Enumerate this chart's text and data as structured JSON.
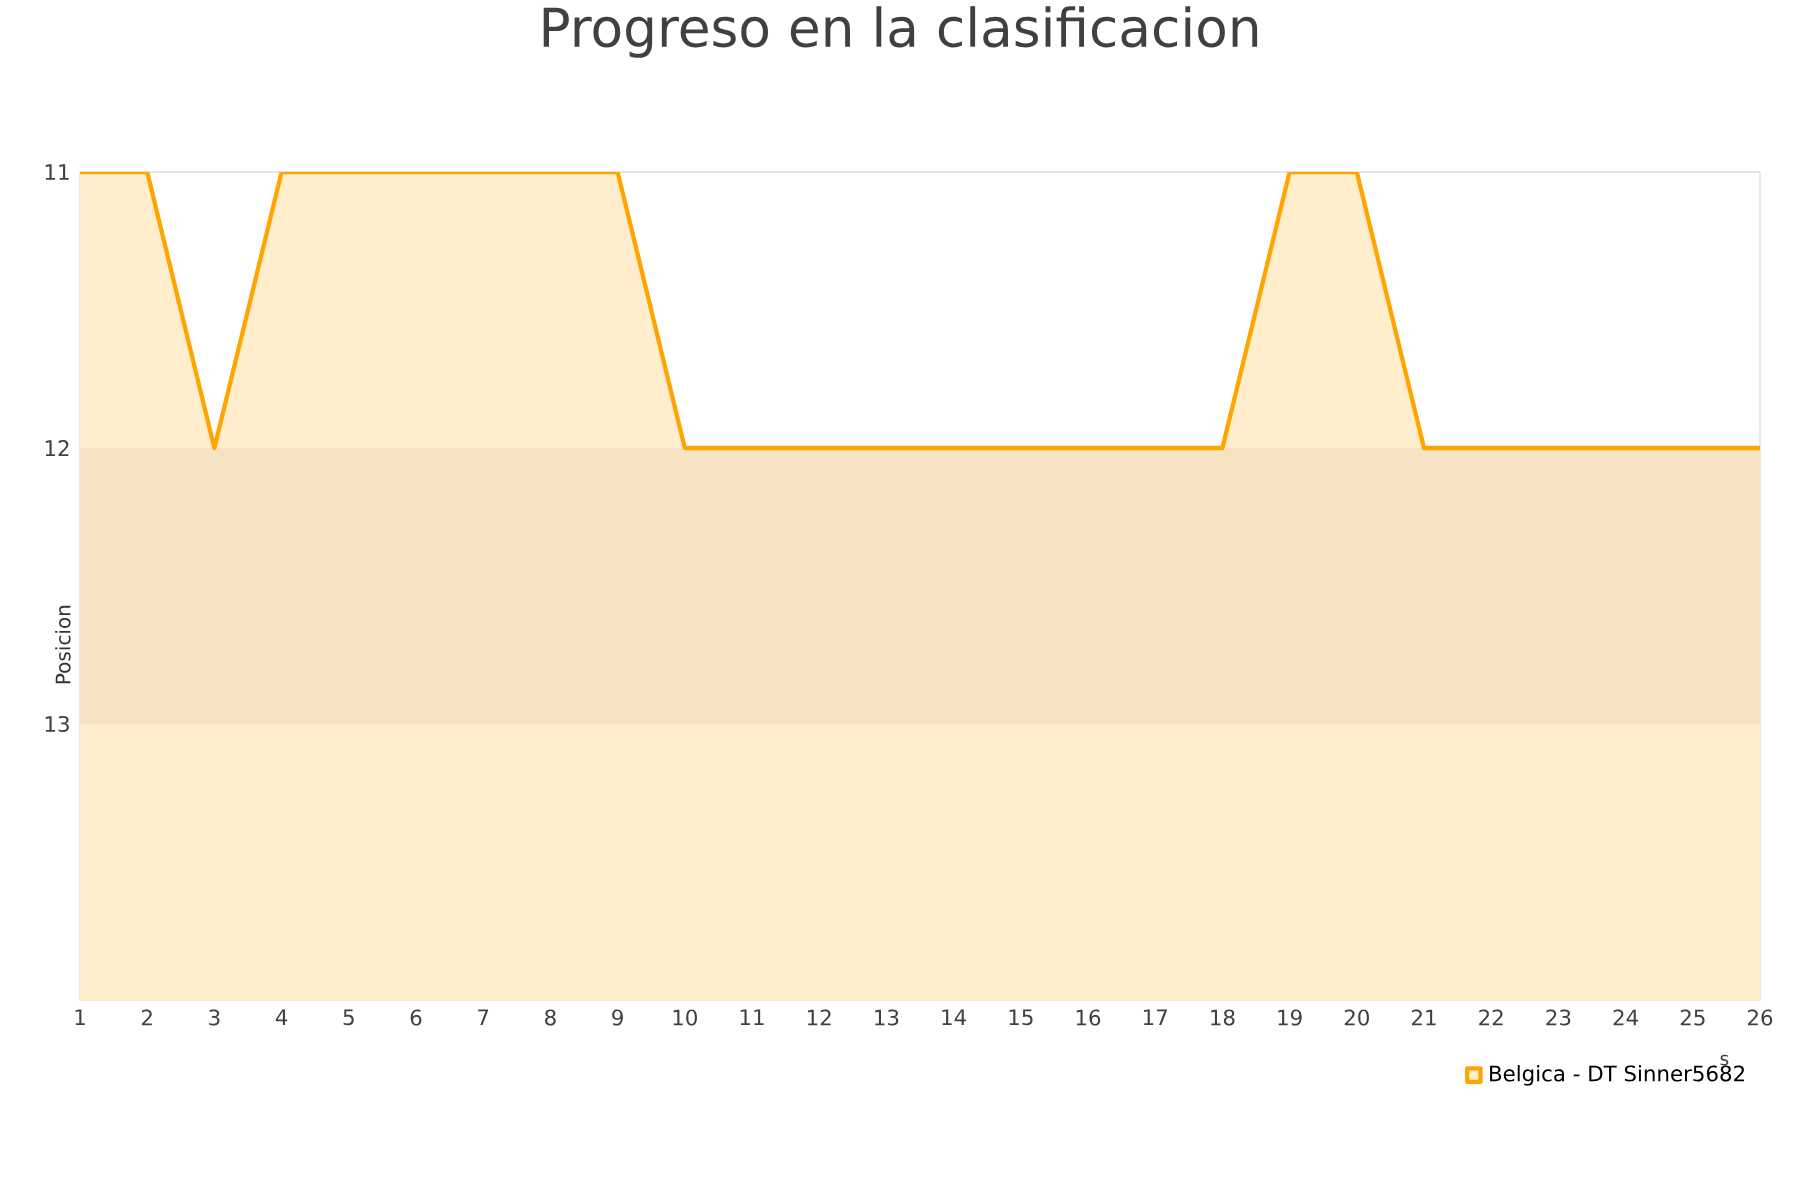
{
  "chart_data": {
    "type": "area",
    "title": "Progreso en la clasificacion",
    "ylabel": "Posicion",
    "xlabel": "s",
    "x": [
      1,
      2,
      3,
      4,
      5,
      6,
      7,
      8,
      9,
      10,
      11,
      12,
      13,
      14,
      15,
      16,
      17,
      18,
      19,
      20,
      21,
      22,
      23,
      24,
      25,
      26
    ],
    "series": [
      {
        "name": "Belgica - DT Sinner5682",
        "color": "#ffa500",
        "values": [
          11,
          11,
          12,
          11,
          11,
          11,
          11,
          11,
          11,
          12,
          12,
          12,
          12,
          12,
          12,
          12,
          12,
          12,
          11,
          11,
          12,
          12,
          12,
          12,
          12,
          12
        ]
      }
    ],
    "bands": [
      {
        "axis": "y",
        "from": 12,
        "to": 13,
        "color": "#f5e3c3"
      }
    ],
    "xlim": [
      1,
      26
    ],
    "xticks": [
      1,
      2,
      3,
      4,
      5,
      6,
      7,
      8,
      9,
      10,
      11,
      12,
      13,
      14,
      15,
      16,
      17,
      18,
      19,
      20,
      21,
      22,
      23,
      24,
      25,
      26
    ],
    "ylim": [
      14,
      11
    ],
    "yticks": [
      11,
      12,
      13
    ],
    "grid": "y",
    "legend": "bottom right"
  }
}
